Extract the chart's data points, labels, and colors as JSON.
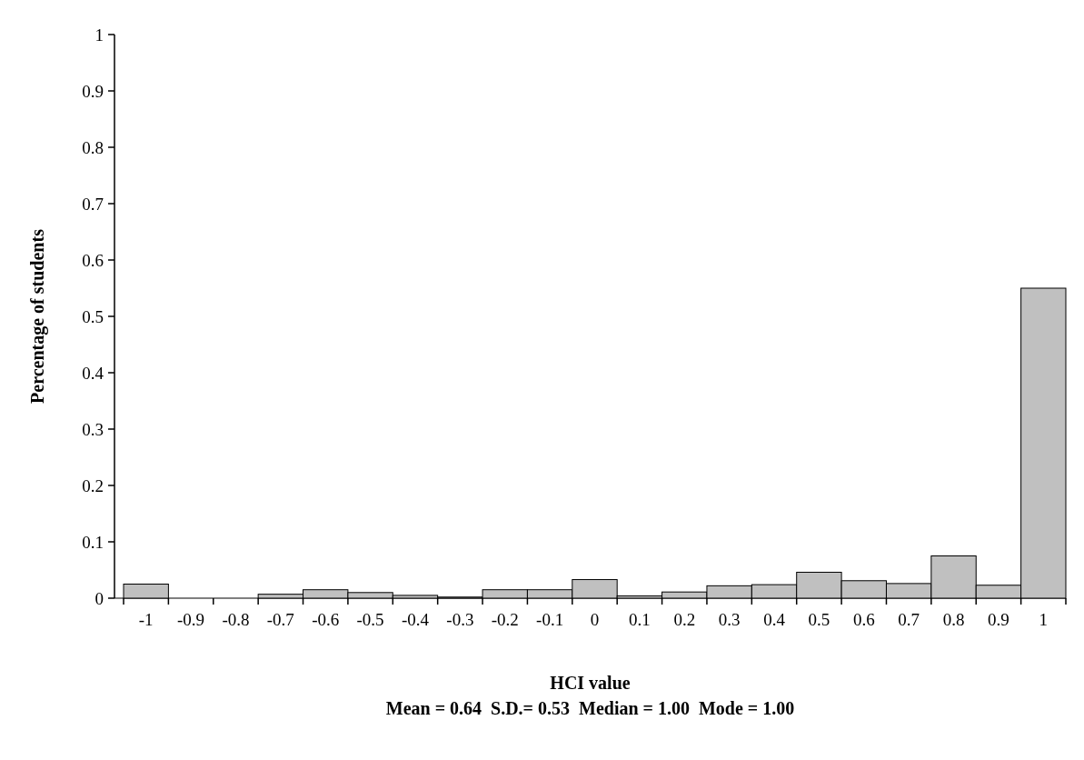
{
  "chart_data": {
    "type": "bar",
    "xlabel": "HCI value",
    "ylabel": "Percentage of students",
    "annotations": [
      "Mean = 0.64  S.D.= 0.53  Median = 1.00  Mode = 1.00"
    ],
    "categories": [
      "-1",
      "-0.9",
      "-0.8",
      "-0.7",
      "-0.6",
      "-0.5",
      "-0.4",
      "-0.3",
      "-0.2",
      "-0.1",
      "0",
      "0.1",
      "0.2",
      "0.3",
      "0.4",
      "0.5",
      "0.6",
      "0.7",
      "0.8",
      "0.9",
      "1"
    ],
    "values": [
      0.025,
      0,
      0,
      0.007,
      0.015,
      0.01,
      0.005,
      0.002,
      0.015,
      0.015,
      0.033,
      0.004,
      0.011,
      0.022,
      0.024,
      0.046,
      0.031,
      0.026,
      0.075,
      0.023,
      0.55
    ],
    "color": "#c0c0c0",
    "ylim": [
      0,
      1
    ],
    "yticks": [
      0,
      0.1,
      0.2,
      0.3,
      0.4,
      0.5,
      0.6,
      0.7,
      0.8,
      0.9,
      1
    ],
    "grid": false
  }
}
